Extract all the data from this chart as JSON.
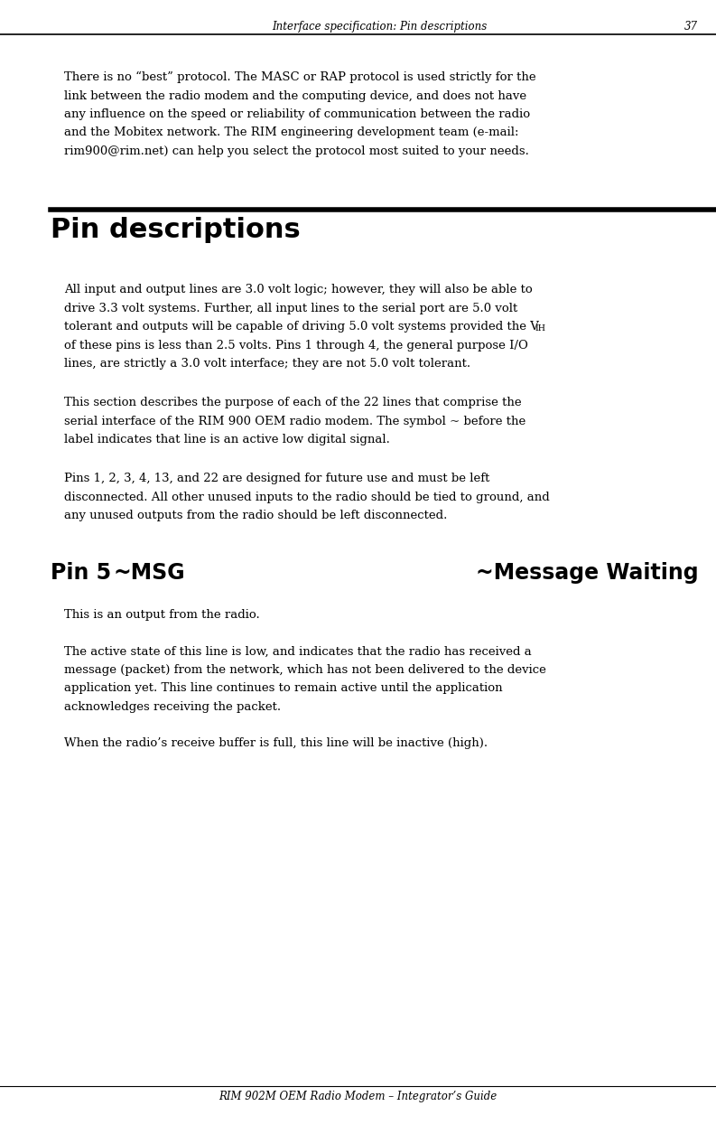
{
  "header_text": "Interface specification: Pin descriptions",
  "header_page": "37",
  "footer_text": "RIM 902M OEM Radio Modem – Integrator’s Guide",
  "bg_color": "#ffffff",
  "text_color": "#000000",
  "para1_line1": "There is no “best” protocol. The MASC or RAP protocol is used strictly for the",
  "para1_line2": "link between the radio modem and the computing device, and does not have",
  "para1_line3": "any influence on the speed or reliability of communication between the radio",
  "para1_line4": "and the Mobitex network. The RIM engineering development team (e-mail:",
  "para1_line5": "rim900@rim.net) can help you select the protocol most suited to your needs.",
  "section_title": "Pin descriptions",
  "para2_line1": "All input and output lines are 3.0 volt logic; however, they will also be able to",
  "para2_line2": "drive 3.3 volt systems. Further, all input lines to the serial port are 5.0 volt",
  "para2_line3a": "tolerant and outputs will be capable of driving 5.0 volt systems provided the V",
  "para2_line3b": "IH",
  "para2_line4": "of these pins is less than 2.5 volts. Pins 1 through 4, the general purpose I/O",
  "para2_line5": "lines, are strictly a 3.0 volt interface; they are not 5.0 volt tolerant.",
  "para3_line1": "This section describes the purpose of each of the 22 lines that comprise the",
  "para3_line2": "serial interface of the RIM 900 OEM radio modem. The symbol ~ before the",
  "para3_line3": "label indicates that line is an active low digital signal.",
  "para4_line1": "Pins 1, 2, 3, 4, 13, and 22 are designed for future use and must be left",
  "para4_line2": "disconnected. All other unused inputs to the radio should be tied to ground, and",
  "para4_line3": "any unused outputs from the radio should be left disconnected.",
  "pin5_label": "Pin 5",
  "pin5_signal": "~MSG",
  "pin5_desc": "~Message Waiting",
  "pin5_p1": "This is an output from the radio.",
  "pin5_p2_line1": "The active state of this line is low, and indicates that the radio has received a",
  "pin5_p2_line2": "message (packet) from the network, which has not been delivered to the device",
  "pin5_p2_line3": "application yet. This line continues to remain active until the application",
  "pin5_p2_line4": "acknowledges receiving the packet.",
  "pin5_p3": "When the radio’s receive buffer is full, this line will be inactive (high).",
  "lm": 0.09,
  "rm": 0.975,
  "body_fs": 9.5,
  "header_fs": 8.5,
  "section_fs": 22,
  "pin_fs": 17,
  "body_lh": 1.55
}
